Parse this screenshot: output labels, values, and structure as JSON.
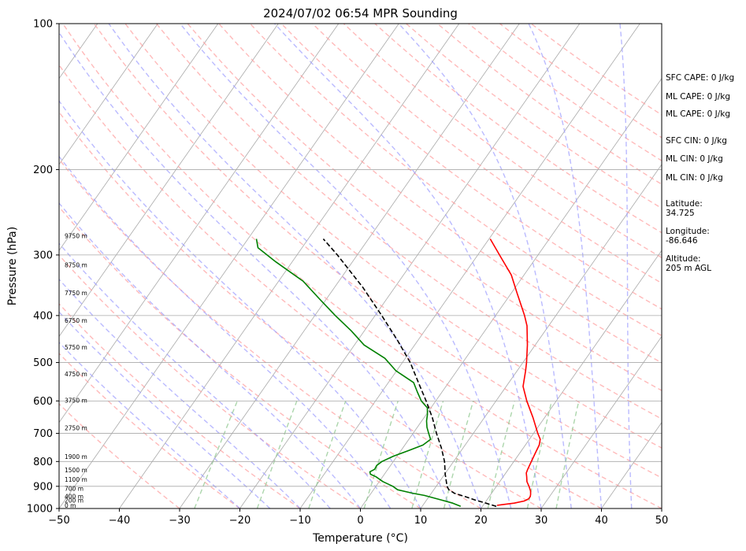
{
  "chart_data": {
    "type": "line",
    "title": "2024/07/02 06:54 MPR Sounding",
    "xlabel": "Temperature (°C)",
    "ylabel": "Pressure (hPa)",
    "xlim": [
      -50,
      50
    ],
    "ylim": [
      1000,
      100
    ],
    "y_scale": "log",
    "x_ticks": [
      -50,
      -40,
      -30,
      -20,
      -10,
      0,
      10,
      20,
      30,
      40,
      50
    ],
    "y_ticks": [
      100,
      200,
      300,
      400,
      500,
      600,
      700,
      800,
      900,
      1000
    ],
    "skew": true,
    "grid": true,
    "background_lines": {
      "isotherms_color": "#a9a9a9",
      "dry_adiabats_color": "#ff9c9c",
      "moist_adiabats_color": "#9c9cff",
      "mixing_ratio_color": "#90c890"
    },
    "height_labels": [
      {
        "label": "9750 m",
        "p": 277
      },
      {
        "label": "8750 m",
        "p": 318
      },
      {
        "label": "7750 m",
        "p": 363
      },
      {
        "label": "6750 m",
        "p": 414
      },
      {
        "label": "5750 m",
        "p": 470
      },
      {
        "label": "4750 m",
        "p": 534
      },
      {
        "label": "3750 m",
        "p": 605
      },
      {
        "label": "2750 m",
        "p": 690
      },
      {
        "label": "1900 m",
        "p": 790
      },
      {
        "label": "1500 m",
        "p": 842
      },
      {
        "label": "1100 m",
        "p": 880
      },
      {
        "label": "700 m",
        "p": 920
      },
      {
        "label": "400 m",
        "p": 955
      },
      {
        "label": "200 m",
        "p": 972
      },
      {
        "label": "0 m",
        "p": 997
      }
    ],
    "series": [
      {
        "name": "",
        "style": "solid",
        "color": "#ff0000",
        "points": [
          [
            985,
            22.3
          ],
          [
            975,
            24.9
          ],
          [
            965,
            26.3
          ],
          [
            955,
            26.8
          ],
          [
            945,
            26.8
          ],
          [
            935,
            26.6
          ],
          [
            920,
            26.2
          ],
          [
            900,
            25.4
          ],
          [
            880,
            24.5
          ],
          [
            860,
            23.9
          ],
          [
            845,
            23.4
          ],
          [
            830,
            23.2
          ],
          [
            800,
            22.9
          ],
          [
            770,
            22.6
          ],
          [
            740,
            22.3
          ],
          [
            720,
            21.8
          ],
          [
            700,
            20.7
          ],
          [
            650,
            18.1
          ],
          [
            600,
            15.1
          ],
          [
            560,
            12.8
          ],
          [
            520,
            11.4
          ],
          [
            500,
            10.6
          ],
          [
            460,
            8.7
          ],
          [
            420,
            6.4
          ],
          [
            400,
            4.8
          ],
          [
            360,
            1.0
          ],
          [
            330,
            -2.1
          ],
          [
            300,
            -6.4
          ],
          [
            278,
            -9.8
          ]
        ]
      },
      {
        "name": "",
        "style": "solid",
        "color": "#008000",
        "points": [
          [
            990,
            16.4
          ],
          [
            975,
            14.7
          ],
          [
            960,
            12.4
          ],
          [
            940,
            9.1
          ],
          [
            930,
            6.9
          ],
          [
            915,
            4.0
          ],
          [
            900,
            2.8
          ],
          [
            880,
            0.6
          ],
          [
            860,
            -1.1
          ],
          [
            850,
            -2.3
          ],
          [
            840,
            -2.7
          ],
          [
            830,
            -2.2
          ],
          [
            815,
            -2.3
          ],
          [
            800,
            -1.9
          ],
          [
            780,
            -0.6
          ],
          [
            760,
            1.2
          ],
          [
            740,
            3.0
          ],
          [
            720,
            3.6
          ],
          [
            700,
            2.6
          ],
          [
            680,
            1.6
          ],
          [
            660,
            0.8
          ],
          [
            640,
            0.2
          ],
          [
            620,
            -0.6
          ],
          [
            600,
            -2.4
          ],
          [
            575,
            -4.1
          ],
          [
            550,
            -5.8
          ],
          [
            520,
            -10.1
          ],
          [
            490,
            -13.4
          ],
          [
            460,
            -18.4
          ],
          [
            430,
            -22.2
          ],
          [
            400,
            -26.6
          ],
          [
            370,
            -31.1
          ],
          [
            340,
            -35.9
          ],
          [
            310,
            -42.7
          ],
          [
            290,
            -47.3
          ],
          [
            278,
            -48.6
          ]
        ]
      },
      {
        "name": "",
        "style": "dashed",
        "color": "#000000",
        "points": [
          [
            990,
            22.3
          ],
          [
            975,
            20.2
          ],
          [
            960,
            18.0
          ],
          [
            945,
            16.0
          ],
          [
            930,
            13.8
          ],
          [
            915,
            12.5
          ],
          [
            900,
            11.8
          ],
          [
            850,
            10.1
          ],
          [
            800,
            8.5
          ],
          [
            750,
            6.4
          ],
          [
            700,
            3.9
          ],
          [
            650,
            1.4
          ],
          [
            600,
            -1.6
          ],
          [
            550,
            -5.0
          ],
          [
            500,
            -8.7
          ],
          [
            450,
            -13.4
          ],
          [
            400,
            -18.9
          ],
          [
            350,
            -25.3
          ],
          [
            300,
            -33.3
          ],
          [
            278,
            -37.5
          ]
        ]
      }
    ],
    "indices": [
      "SFC CAPE: 0 J/kg",
      "ML CAPE: 0 J/kg",
      "ML CAPE: 0 J/kg",
      "SFC CIN: 0 J/kg",
      "ML CIN: 0 J/kg",
      "ML CIN: 0 J/kg"
    ],
    "location": {
      "lat_label": "Latitude:",
      "lat_value": "34.725",
      "lon_label": "Longitude:",
      "lon_value": "-86.646",
      "alt_label": "Altitude:",
      "alt_value": "205 m AGL"
    }
  }
}
